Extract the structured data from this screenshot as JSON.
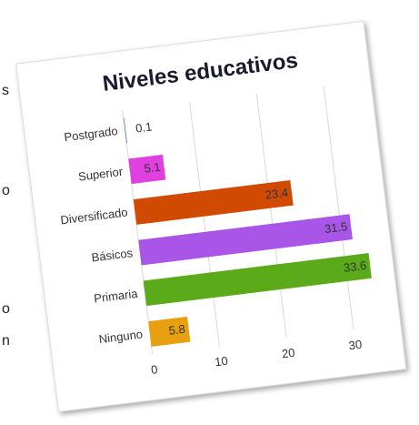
{
  "chart_data": {
    "type": "bar",
    "orientation": "horizontal",
    "title": "Niveles educativos",
    "categories": [
      "Postgrado",
      "Superior",
      "Diversificado",
      "Básicos",
      "Primaria",
      "Ninguno"
    ],
    "values": [
      0.1,
      5.1,
      23.4,
      31.5,
      33.6,
      5.8
    ],
    "colors": [
      "#4a7fd0",
      "#e040e0",
      "#d04a02",
      "#a855e8",
      "#5aaa1a",
      "#e8a010"
    ],
    "xlim": [
      0,
      35
    ],
    "xticks": [
      0,
      10,
      20,
      30
    ],
    "grid": true
  },
  "side_fragments": [
    "s",
    "o",
    "o",
    "n"
  ]
}
